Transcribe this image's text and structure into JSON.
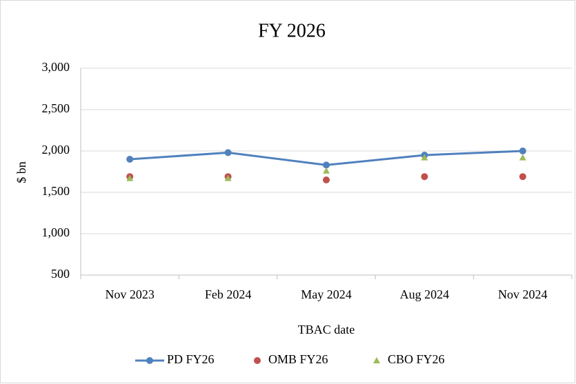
{
  "chart_data": {
    "type": "line",
    "title": "FY 2026",
    "x_label": "TBAC date",
    "y_label": "$ bn",
    "categories": [
      "Nov 2023",
      "Feb 2024",
      "May 2024",
      "Aug 2024",
      "Nov 2024"
    ],
    "series": [
      {
        "name": "PD FY26",
        "color": "#4f81bd",
        "line": true,
        "marker": "circle",
        "values": [
          1900,
          1980,
          1830,
          1950,
          2000
        ]
      },
      {
        "name": "OMB FY26",
        "color": "#c0504d",
        "line": false,
        "marker": "circle",
        "values": [
          1690,
          1690,
          1650,
          1690,
          1690
        ]
      },
      {
        "name": "CBO FY26",
        "color": "#9bbb59",
        "line": false,
        "marker": "triangle",
        "values": [
          1670,
          1670,
          1760,
          1920,
          1920
        ]
      }
    ],
    "ylim": [
      500,
      3000
    ],
    "yticks": [
      500,
      {
        "value": 1000,
        "label": "1,000"
      },
      {
        "value": 1500,
        "label": "1,500"
      },
      {
        "value": 2000,
        "label": "2,000"
      },
      {
        "value": 2500,
        "label": "2,500"
      },
      {
        "value": 3000,
        "label": "3,000"
      }
    ],
    "grid": true,
    "legend": "bottom"
  }
}
